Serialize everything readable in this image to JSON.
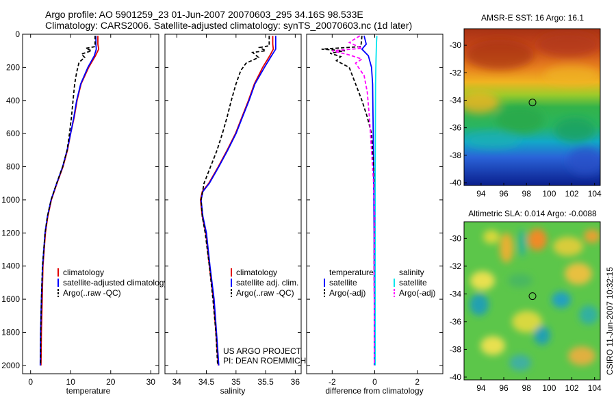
{
  "header": {
    "line1": "Argo profile: AO 5901259_23 01-Jun-2007 20070603_295 34.16S 98.533E",
    "line2": "Climatology: CARS2006. Satellite-adjusted climatology: synTS_20070603.nc (1d later)"
  },
  "credits": {
    "project": "US ARGO PROJECT",
    "pi": "PI: DEAN ROEMMICH",
    "stamp": "CSIRO 11-Jun-2007 10:32:15"
  },
  "colors": {
    "climatology": "#e00000",
    "satellite": "#0000ff",
    "argo": "#000000",
    "satellite_salinity": "#00e5ee",
    "argo_adj_salinity": "#ff00ff"
  },
  "chart_data": [
    {
      "type": "line",
      "xlabel": "temperature",
      "ylabel": "",
      "xlim": [
        -2,
        32
      ],
      "ylim": [
        2050,
        0
      ],
      "xticks": [
        0,
        10,
        20,
        30
      ],
      "yticks": [
        0,
        200,
        400,
        600,
        800,
        1000,
        1200,
        1400,
        1600,
        1800,
        2000
      ],
      "legend": [
        "climatology",
        "satellite-adjusted climatology",
        "Argo(..raw -QC)"
      ],
      "series": [
        {
          "name": "climatology",
          "style": "solid",
          "color": "#e00000",
          "points": [
            [
              16.8,
              10
            ],
            [
              16.8,
              60
            ],
            [
              17.0,
              90
            ],
            [
              16.2,
              130
            ],
            [
              14.5,
              200
            ],
            [
              12.6,
              300
            ],
            [
              11.6,
              400
            ],
            [
              10.9,
              500
            ],
            [
              10.0,
              600
            ],
            [
              9.2,
              700
            ],
            [
              8.1,
              800
            ],
            [
              6.6,
              900
            ],
            [
              5.2,
              1000
            ],
            [
              4.3,
              1100
            ],
            [
              3.7,
              1200
            ],
            [
              3.4,
              1300
            ],
            [
              3.1,
              1400
            ],
            [
              2.9,
              1600
            ],
            [
              2.7,
              1800
            ],
            [
              2.6,
              2000
            ]
          ]
        },
        {
          "name": "satellite-adjusted climatology",
          "style": "solid",
          "color": "#0000ff",
          "points": [
            [
              16.3,
              10
            ],
            [
              16.3,
              60
            ],
            [
              16.4,
              90
            ],
            [
              15.9,
              130
            ],
            [
              14.3,
              200
            ],
            [
              12.5,
              300
            ],
            [
              11.5,
              400
            ],
            [
              10.8,
              500
            ],
            [
              10.0,
              600
            ],
            [
              9.1,
              700
            ],
            [
              8.0,
              800
            ],
            [
              6.5,
              900
            ],
            [
              5.1,
              1000
            ],
            [
              4.2,
              1100
            ],
            [
              3.6,
              1200
            ],
            [
              3.3,
              1300
            ],
            [
              3.0,
              1400
            ],
            [
              2.7,
              1600
            ],
            [
              2.5,
              1800
            ],
            [
              2.4,
              2000
            ]
          ]
        },
        {
          "name": "Argo(..raw -QC)",
          "style": "dash",
          "color": "#000000",
          "points": [
            [
              16.1,
              10
            ],
            [
              16.1,
              75
            ],
            [
              13.8,
              85
            ],
            [
              15.2,
              100
            ],
            [
              12.7,
              120
            ],
            [
              13.5,
              140
            ],
            [
              12.1,
              170
            ],
            [
              11.5,
              230
            ],
            [
              11.0,
              300
            ],
            [
              10.6,
              400
            ],
            [
              10.2,
              500
            ],
            [
              9.7,
              600
            ],
            [
              9.1,
              700
            ],
            [
              8.0,
              800
            ],
            [
              6.5,
              900
            ],
            [
              5.1,
              1000
            ],
            [
              4.2,
              1100
            ],
            [
              3.6,
              1200
            ],
            [
              3.3,
              1300
            ],
            [
              2.95,
              1400
            ],
            [
              2.7,
              1600
            ],
            [
              2.55,
              1800
            ],
            [
              2.5,
              2000
            ]
          ]
        }
      ]
    },
    {
      "type": "line",
      "xlabel": "salinity",
      "ylabel": "",
      "xlim": [
        33.8,
        36.1
      ],
      "ylim": [
        2050,
        0
      ],
      "xticks": [
        34,
        34.5,
        35,
        35.5,
        36
      ],
      "yticks": [],
      "legend": [
        "climatology",
        "satellite adj. clim.",
        "Argo(..raw -QC)"
      ],
      "series": [
        {
          "name": "climatology",
          "style": "solid",
          "color": "#e00000",
          "points": [
            [
              35.62,
              10
            ],
            [
              35.62,
              60
            ],
            [
              35.63,
              90
            ],
            [
              35.57,
              130
            ],
            [
              35.45,
              200
            ],
            [
              35.31,
              300
            ],
            [
              35.21,
              400
            ],
            [
              35.1,
              500
            ],
            [
              34.99,
              600
            ],
            [
              34.85,
              700
            ],
            [
              34.7,
              800
            ],
            [
              34.54,
              900
            ],
            [
              34.43,
              950
            ],
            [
              34.4,
              1000
            ],
            [
              34.43,
              1100
            ],
            [
              34.49,
              1200
            ],
            [
              34.55,
              1400
            ],
            [
              34.62,
              1600
            ],
            [
              34.66,
              1800
            ],
            [
              34.7,
              2000
            ]
          ]
        },
        {
          "name": "satellite adj. clim.",
          "style": "solid",
          "color": "#0000ff",
          "points": [
            [
              35.67,
              10
            ],
            [
              35.67,
              60
            ],
            [
              35.67,
              90
            ],
            [
              35.6,
              130
            ],
            [
              35.48,
              200
            ],
            [
              35.32,
              300
            ],
            [
              35.22,
              400
            ],
            [
              35.11,
              500
            ],
            [
              35.0,
              600
            ],
            [
              34.86,
              700
            ],
            [
              34.71,
              800
            ],
            [
              34.55,
              900
            ],
            [
              34.44,
              950
            ],
            [
              34.41,
              1000
            ],
            [
              34.44,
              1100
            ],
            [
              34.5,
              1200
            ],
            [
              34.56,
              1400
            ],
            [
              34.63,
              1600
            ],
            [
              34.67,
              1800
            ],
            [
              34.71,
              2000
            ]
          ]
        },
        {
          "name": "Argo(..raw -QC)",
          "style": "dash",
          "color": "#000000",
          "points": [
            [
              35.56,
              10
            ],
            [
              35.56,
              70
            ],
            [
              35.4,
              80
            ],
            [
              35.5,
              100
            ],
            [
              35.28,
              110
            ],
            [
              35.38,
              140
            ],
            [
              35.17,
              175
            ],
            [
              35.08,
              220
            ],
            [
              35.0,
              300
            ],
            [
              34.92,
              400
            ],
            [
              34.85,
              500
            ],
            [
              34.77,
              600
            ],
            [
              34.68,
              700
            ],
            [
              34.57,
              800
            ],
            [
              34.46,
              900
            ],
            [
              34.41,
              1000
            ],
            [
              34.43,
              1100
            ],
            [
              34.48,
              1200
            ],
            [
              34.55,
              1400
            ],
            [
              34.61,
              1600
            ],
            [
              34.66,
              1800
            ],
            [
              34.69,
              2000
            ]
          ]
        }
      ]
    },
    {
      "type": "line",
      "xlabel": "difference from climatology",
      "ylabel": "",
      "xlim": [
        -3.2,
        3.2
      ],
      "ylim": [
        2050,
        0
      ],
      "xticks": [
        -2,
        0,
        2
      ],
      "yticks": [],
      "legend_left_heading": "temperature",
      "legend_right_heading": "salinity",
      "legend": [
        "satellite",
        "Argo(-adj)",
        "satellite",
        "Argo(-adj)"
      ],
      "series": [
        {
          "name": "temperature satellite",
          "style": "solid",
          "color": "#0000ff",
          "points": [
            [
              -0.5,
              10
            ],
            [
              -0.4,
              60
            ],
            [
              -0.6,
              90
            ],
            [
              -0.3,
              130
            ],
            [
              -0.15,
              200
            ],
            [
              -0.1,
              300
            ],
            [
              -0.08,
              500
            ],
            [
              -0.05,
              800
            ],
            [
              -0.03,
              1200
            ],
            [
              -0.02,
              1600
            ],
            [
              -0.02,
              2000
            ]
          ]
        },
        {
          "name": "temperature Argo(-adj)",
          "style": "dash",
          "color": "#000000",
          "points": [
            [
              -0.6,
              10
            ],
            [
              -0.65,
              75
            ],
            [
              -2.5,
              90
            ],
            [
              -1.4,
              100
            ],
            [
              -2.1,
              115
            ],
            [
              -1.6,
              135
            ],
            [
              -1.8,
              160
            ],
            [
              -1.2,
              200
            ],
            [
              -0.9,
              300
            ],
            [
              -0.6,
              400
            ],
            [
              -0.35,
              500
            ],
            [
              -0.15,
              600
            ],
            [
              -0.05,
              800
            ],
            [
              0,
              1000
            ],
            [
              -0.02,
              1200
            ],
            [
              -0.03,
              1400
            ],
            [
              -0.02,
              1600
            ],
            [
              -0.02,
              2000
            ]
          ]
        },
        {
          "name": "salinity satellite",
          "style": "solid",
          "color": "#00e5ee",
          "points": [
            [
              0.1,
              10
            ],
            [
              0.08,
              60
            ],
            [
              0.06,
              150
            ],
            [
              0.04,
              300
            ],
            [
              0.03,
              600
            ],
            [
              0.02,
              1000
            ],
            [
              0.02,
              1500
            ],
            [
              0.02,
              2000
            ]
          ]
        },
        {
          "name": "salinity Argo(-adj)",
          "style": "dash",
          "color": "#ff00ff",
          "points": [
            [
              -0.7,
              10
            ],
            [
              -1.2,
              50
            ],
            [
              -0.6,
              85
            ],
            [
              -2.0,
              100
            ],
            [
              -1.2,
              125
            ],
            [
              -0.6,
              150
            ],
            [
              -0.9,
              175
            ],
            [
              -0.5,
              250
            ],
            [
              -0.35,
              350
            ],
            [
              -0.25,
              500
            ],
            [
              -0.15,
              700
            ],
            [
              -0.05,
              900
            ],
            [
              0,
              1100
            ],
            [
              -0.03,
              1400
            ],
            [
              -0.02,
              1700
            ],
            [
              -0.02,
              2000
            ]
          ]
        }
      ]
    },
    {
      "type": "heatmap",
      "title": "AMSR-E SST: 16 Argo: 16.1",
      "xlim": [
        92.5,
        104.5
      ],
      "ylim": [
        -40.2,
        -28.8
      ],
      "xticks": [
        94,
        96,
        98,
        100,
        102,
        104
      ],
      "yticks": [
        -30,
        -32,
        -34,
        -36,
        -38,
        -40
      ],
      "argo_position": [
        98.53,
        -34.16
      ]
    },
    {
      "type": "heatmap",
      "title": "Altimetric SLA: 0.014 Argo: -0.0088",
      "xlim": [
        92.5,
        104.5
      ],
      "ylim": [
        -40.2,
        -28.8
      ],
      "xticks": [
        94,
        96,
        98,
        100,
        102,
        104
      ],
      "yticks": [
        -30,
        -32,
        -34,
        -36,
        -38,
        -40
      ],
      "argo_position": [
        98.53,
        -34.16
      ]
    }
  ]
}
